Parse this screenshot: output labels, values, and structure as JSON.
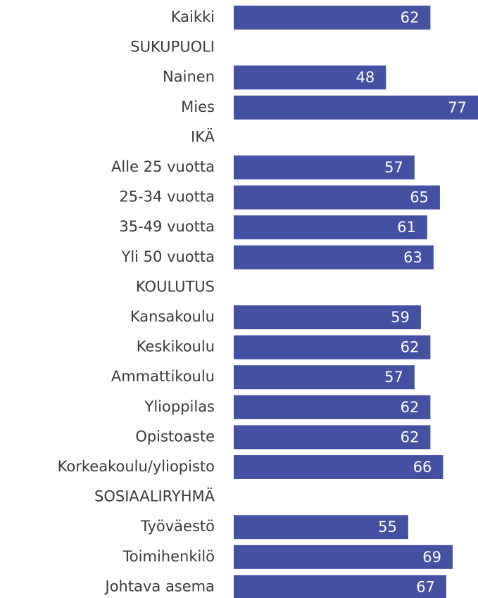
{
  "chart_data": {
    "type": "bar",
    "orientation": "horizontal",
    "categories": [
      "Kaikki",
      "SUKUPUOLI",
      "Nainen",
      "Mies",
      "IKÄ",
      "Alle 25 vuotta",
      "25-34 vuotta",
      "35-49 vuotta",
      "Yli 50 vuotta",
      "KOULUTUS",
      "Kansakoulu",
      "Keskikoulu",
      "Ammattikoulu",
      "Ylioppilas",
      "Opistoaste",
      "Korkeakoulu/yliopisto",
      "SOSIAALIRYHMÄ",
      "Työväestö",
      "Toimihenkilö",
      "Johtava asema"
    ],
    "values": [
      62,
      null,
      48,
      77,
      null,
      57,
      65,
      61,
      63,
      null,
      59,
      62,
      57,
      62,
      62,
      66,
      null,
      55,
      69,
      67
    ],
    "color": "#4450a2",
    "xlim": [
      0,
      77
    ]
  }
}
